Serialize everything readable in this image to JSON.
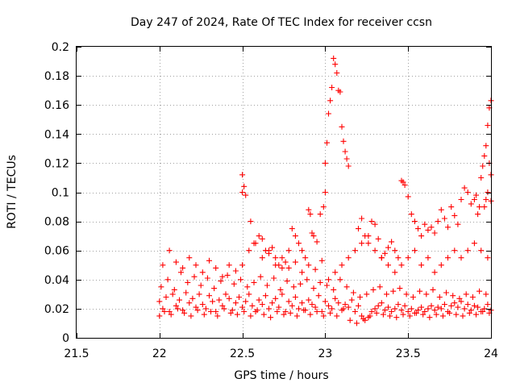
{
  "chart_data": {
    "type": "scatter",
    "title": "Day 247 of 2024, Rate Of TEC Index for receiver ccsn",
    "xlabel": "GPS time / hours",
    "ylabel": "ROTI / TECUs",
    "xlim": [
      21.5,
      24
    ],
    "ylim": [
      0,
      0.2
    ],
    "xticks": [
      21.5,
      22,
      22.5,
      23,
      23.5,
      24
    ],
    "xtick_labels": [
      "21.5",
      "22",
      "22.5",
      "23",
      "23.5",
      "24"
    ],
    "yticks": [
      0,
      0.02,
      0.04,
      0.06,
      0.08,
      0.1,
      0.12,
      0.14,
      0.16,
      0.18,
      0.2
    ],
    "ytick_labels": [
      "0",
      "0.02",
      "0.04",
      "0.06",
      "0.08",
      "0.1",
      "0.12",
      "0.14",
      "0.16",
      "0.18",
      "0.2"
    ],
    "grid": true,
    "marker": "plus",
    "color": "#ff0000",
    "series": [
      {
        "name": "ROTI",
        "x": [
          22.0,
          22.02,
          22.04,
          22.06,
          22.08,
          22.1,
          22.12,
          22.14,
          22.16,
          22.18,
          22.2,
          22.22,
          22.24,
          22.26,
          22.28,
          22.3,
          22.32,
          22.34,
          22.36,
          22.38,
          22.4,
          22.42,
          22.44,
          22.46,
          22.48,
          22.5,
          22.52,
          22.54,
          22.56,
          22.58,
          22.6,
          22.62,
          22.64,
          22.66,
          22.68,
          22.7,
          22.72,
          22.74,
          22.76,
          22.78,
          22.8,
          22.82,
          22.84,
          22.86,
          22.88,
          22.9,
          22.92,
          22.94,
          22.96,
          22.98,
          23.0,
          23.02,
          23.04,
          23.06,
          23.08,
          23.1,
          23.12,
          23.14,
          23.16,
          23.18,
          23.2,
          23.22,
          23.24,
          23.26,
          23.28,
          23.3,
          23.32,
          23.34,
          23.36,
          23.38,
          23.4,
          23.42,
          23.44,
          23.46,
          23.48,
          23.5,
          23.52,
          23.54,
          23.56,
          23.58,
          23.6,
          23.62,
          23.64,
          23.66,
          23.68,
          23.7,
          23.72,
          23.74,
          23.76,
          23.78,
          23.8,
          23.82,
          23.84,
          23.86,
          23.88,
          23.9,
          23.92,
          23.94,
          23.96,
          23.98,
          24.0,
          22.01,
          22.05,
          22.09,
          22.13,
          22.17,
          22.21,
          22.25,
          22.29,
          22.33,
          22.37,
          22.41,
          22.45,
          22.49,
          22.53,
          22.57,
          22.61,
          22.65,
          22.69,
          22.73,
          22.77,
          22.81,
          22.85,
          22.89,
          22.93,
          22.97,
          23.01,
          23.05,
          23.09,
          23.13,
          23.17,
          23.21,
          23.25,
          23.29,
          23.33,
          23.37,
          23.41,
          23.45,
          23.49,
          23.53,
          23.57,
          23.61,
          23.65,
          23.69,
          23.73,
          23.77,
          23.81,
          23.85,
          23.89,
          23.93,
          23.97,
          22.0,
          22.03,
          22.07,
          22.11,
          22.15,
          22.19,
          22.23,
          22.27,
          22.31,
          22.35,
          22.39,
          22.43,
          22.47,
          22.51,
          22.55,
          22.59,
          22.63,
          22.67,
          22.71,
          22.75,
          22.79,
          22.83,
          22.87,
          22.91,
          22.95,
          22.99,
          23.03,
          23.07,
          23.11,
          23.15,
          23.19,
          23.23,
          23.27,
          23.31,
          23.35,
          23.39,
          23.43,
          23.47,
          23.51,
          23.55,
          23.59,
          23.63,
          23.67,
          23.71,
          23.75,
          23.79,
          23.83,
          23.87,
          23.91,
          23.95,
          23.99,
          22.02,
          22.06,
          22.1,
          22.14,
          22.18,
          22.22,
          22.26,
          22.3,
          22.34,
          22.38,
          22.42,
          22.46,
          22.5,
          22.54,
          22.58,
          22.62,
          22.66,
          22.7,
          22.74,
          22.78,
          22.82,
          22.86,
          22.9,
          22.94,
          22.98,
          23.02,
          23.06,
          23.1,
          23.14,
          23.18,
          23.22,
          23.26,
          23.3,
          23.34,
          23.38,
          23.42,
          23.46,
          23.5,
          23.54,
          23.58,
          23.62,
          23.66,
          23.7,
          23.74,
          23.78,
          23.82,
          23.86,
          23.9,
          23.94,
          23.98,
          22.5,
          22.5,
          22.51,
          22.52,
          22.55,
          22.57,
          22.6,
          22.62,
          22.64,
          22.66,
          22.68,
          22.7,
          22.72,
          22.74,
          22.76,
          22.78,
          22.8,
          22.82,
          22.84,
          22.86,
          22.88,
          22.9,
          22.91,
          22.92,
          22.93,
          22.95,
          22.97,
          22.99,
          23.0,
          23.0,
          23.01,
          23.02,
          23.03,
          23.04,
          23.05,
          23.06,
          23.07,
          23.08,
          23.09,
          23.1,
          23.11,
          23.12,
          23.13,
          23.14,
          23.2,
          23.22,
          23.24,
          23.26,
          23.28,
          23.3,
          23.32,
          23.34,
          23.36,
          23.38,
          23.4,
          23.42,
          23.44,
          23.46,
          23.47,
          23.48,
          23.5,
          23.52,
          23.54,
          23.56,
          23.58,
          23.6,
          23.62,
          23.64,
          23.66,
          23.68,
          23.7,
          23.72,
          23.74,
          23.76,
          23.78,
          23.8,
          23.82,
          23.84,
          23.86,
          23.88,
          23.9,
          23.91,
          23.92,
          23.93,
          23.94,
          23.95,
          23.96,
          23.97,
          23.98,
          23.99,
          24.0,
          24.0,
          24.0,
          23.99,
          23.98,
          23.97,
          23.96
        ],
        "y": [
          0.025,
          0.02,
          0.028,
          0.018,
          0.03,
          0.022,
          0.026,
          0.019,
          0.031,
          0.024,
          0.027,
          0.021,
          0.03,
          0.023,
          0.02,
          0.029,
          0.025,
          0.018,
          0.026,
          0.022,
          0.03,
          0.027,
          0.019,
          0.024,
          0.028,
          0.021,
          0.025,
          0.03,
          0.022,
          0.018,
          0.026,
          0.023,
          0.029,
          0.02,
          0.024,
          0.027,
          0.021,
          0.03,
          0.018,
          0.025,
          0.022,
          0.028,
          0.02,
          0.024,
          0.019,
          0.026,
          0.023,
          0.021,
          0.029,
          0.018,
          0.025,
          0.022,
          0.02,
          0.027,
          0.024,
          0.019,
          0.023,
          0.021,
          0.026,
          0.018,
          0.022,
          0.015,
          0.012,
          0.014,
          0.018,
          0.02,
          0.022,
          0.024,
          0.019,
          0.021,
          0.018,
          0.02,
          0.023,
          0.019,
          0.022,
          0.018,
          0.02,
          0.017,
          0.019,
          0.021,
          0.018,
          0.02,
          0.022,
          0.019,
          0.021,
          0.02,
          0.023,
          0.018,
          0.022,
          0.024,
          0.021,
          0.025,
          0.02,
          0.023,
          0.019,
          0.022,
          0.021,
          0.018,
          0.02,
          0.023,
          0.019,
          0.035,
          0.04,
          0.033,
          0.045,
          0.038,
          0.042,
          0.036,
          0.041,
          0.034,
          0.039,
          0.043,
          0.037,
          0.04,
          0.035,
          0.038,
          0.042,
          0.036,
          0.041,
          0.033,
          0.039,
          0.035,
          0.037,
          0.04,
          0.034,
          0.038,
          0.036,
          0.033,
          0.04,
          0.035,
          0.031,
          0.028,
          0.03,
          0.033,
          0.035,
          0.03,
          0.032,
          0.034,
          0.03,
          0.028,
          0.032,
          0.03,
          0.033,
          0.028,
          0.031,
          0.029,
          0.027,
          0.03,
          0.028,
          0.032,
          0.03,
          0.015,
          0.018,
          0.016,
          0.02,
          0.017,
          0.015,
          0.019,
          0.016,
          0.018,
          0.015,
          0.02,
          0.017,
          0.016,
          0.018,
          0.015,
          0.019,
          0.016,
          0.014,
          0.018,
          0.016,
          0.017,
          0.015,
          0.019,
          0.016,
          0.018,
          0.015,
          0.017,
          0.015,
          0.02,
          0.012,
          0.01,
          0.013,
          0.015,
          0.017,
          0.016,
          0.015,
          0.014,
          0.016,
          0.015,
          0.017,
          0.016,
          0.014,
          0.016,
          0.015,
          0.017,
          0.016,
          0.015,
          0.017,
          0.016,
          0.018,
          0.017,
          0.05,
          0.06,
          0.052,
          0.048,
          0.055,
          0.05,
          0.045,
          0.053,
          0.048,
          0.042,
          0.05,
          0.046,
          0.05,
          0.06,
          0.065,
          0.055,
          0.06,
          0.05,
          0.055,
          0.048,
          0.052,
          0.045,
          0.05,
          0.047,
          0.053,
          0.04,
          0.045,
          0.05,
          0.055,
          0.06,
          0.065,
          0.07,
          0.06,
          0.055,
          0.05,
          0.045,
          0.05,
          0.055,
          0.06,
          0.05,
          0.055,
          0.045,
          0.05,
          0.055,
          0.06,
          0.055,
          0.06,
          0.065,
          0.06,
          0.055,
          0.1,
          0.112,
          0.104,
          0.098,
          0.08,
          0.065,
          0.07,
          0.068,
          0.06,
          0.058,
          0.062,
          0.055,
          0.05,
          0.048,
          0.052,
          0.06,
          0.075,
          0.07,
          0.065,
          0.06,
          0.055,
          0.088,
          0.085,
          0.072,
          0.07,
          0.066,
          0.085,
          0.09,
          0.1,
          0.12,
          0.134,
          0.154,
          0.163,
          0.172,
          0.192,
          0.188,
          0.182,
          0.17,
          0.169,
          0.145,
          0.135,
          0.128,
          0.123,
          0.118,
          0.075,
          0.082,
          0.07,
          0.065,
          0.08,
          0.078,
          0.068,
          0.055,
          0.058,
          0.062,
          0.066,
          0.06,
          0.055,
          0.108,
          0.107,
          0.105,
          0.097,
          0.085,
          0.08,
          0.075,
          0.07,
          0.078,
          0.074,
          0.076,
          0.072,
          0.08,
          0.088,
          0.082,
          0.076,
          0.09,
          0.084,
          0.078,
          0.095,
          0.103,
          0.1,
          0.092,
          0.095,
          0.098,
          0.085,
          0.09,
          0.11,
          0.118,
          0.125,
          0.132,
          0.146,
          0.158,
          0.163,
          0.112,
          0.094,
          0.12,
          0.1,
          0.095,
          0.09
        ]
      }
    ]
  }
}
